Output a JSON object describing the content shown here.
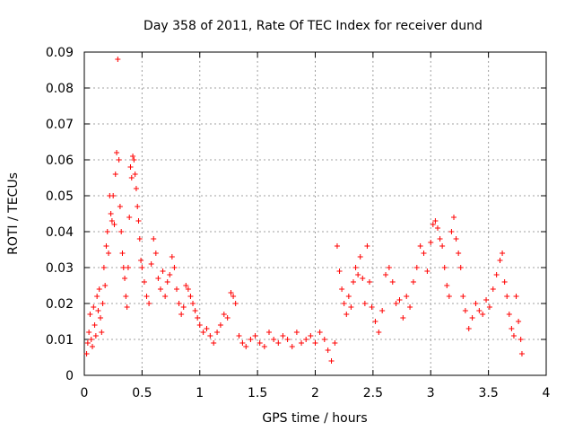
{
  "chart_data": {
    "type": "scatter",
    "title": "Day 358 of 2011, Rate Of TEC Index for receiver dund",
    "xlabel": "GPS time / hours",
    "ylabel": "ROTI / TECUs",
    "xlim": [
      0,
      4
    ],
    "ylim": [
      0,
      0.09
    ],
    "xticks": [
      0,
      0.5,
      1,
      1.5,
      2,
      2.5,
      3,
      3.5,
      4
    ],
    "xtick_labels": [
      "0",
      "0.5",
      "1",
      "1.5",
      "2",
      "2.5",
      "3",
      "3.5",
      "4"
    ],
    "yticks": [
      0,
      0.01,
      0.02,
      0.03,
      0.04,
      0.05,
      0.06,
      0.07,
      0.08,
      0.09
    ],
    "ytick_labels": [
      "0",
      "0.01",
      "0.02",
      "0.03",
      "0.04",
      "0.05",
      "0.06",
      "0.07",
      "0.08",
      "0.09"
    ],
    "grid": true,
    "marker": "plus",
    "color": "#ff0000",
    "series": [
      {
        "points": [
          [
            0.02,
            0.006
          ],
          [
            0.03,
            0.009
          ],
          [
            0.04,
            0.012
          ],
          [
            0.05,
            0.017
          ],
          [
            0.06,
            0.01
          ],
          [
            0.07,
            0.008
          ],
          [
            0.08,
            0.019
          ],
          [
            0.09,
            0.014
          ],
          [
            0.1,
            0.011
          ],
          [
            0.11,
            0.022
          ],
          [
            0.12,
            0.018
          ],
          [
            0.13,
            0.024
          ],
          [
            0.14,
            0.016
          ],
          [
            0.15,
            0.012
          ],
          [
            0.16,
            0.02
          ],
          [
            0.17,
            0.03
          ],
          [
            0.18,
            0.025
          ],
          [
            0.19,
            0.036
          ],
          [
            0.2,
            0.04
          ],
          [
            0.21,
            0.034
          ],
          [
            0.22,
            0.05
          ],
          [
            0.23,
            0.045
          ],
          [
            0.24,
            0.043
          ],
          [
            0.25,
            0.05
          ],
          [
            0.26,
            0.042
          ],
          [
            0.27,
            0.056
          ],
          [
            0.28,
            0.062
          ],
          [
            0.29,
            0.088
          ],
          [
            0.3,
            0.06
          ],
          [
            0.31,
            0.047
          ],
          [
            0.32,
            0.04
          ],
          [
            0.33,
            0.034
          ],
          [
            0.34,
            0.03
          ],
          [
            0.35,
            0.027
          ],
          [
            0.36,
            0.022
          ],
          [
            0.37,
            0.019
          ],
          [
            0.38,
            0.03
          ],
          [
            0.39,
            0.044
          ],
          [
            0.4,
            0.058
          ],
          [
            0.41,
            0.055
          ],
          [
            0.42,
            0.061
          ],
          [
            0.43,
            0.06
          ],
          [
            0.44,
            0.056
          ],
          [
            0.45,
            0.052
          ],
          [
            0.46,
            0.047
          ],
          [
            0.47,
            0.043
          ],
          [
            0.48,
            0.038
          ],
          [
            0.49,
            0.032
          ],
          [
            0.5,
            0.03
          ],
          [
            0.52,
            0.026
          ],
          [
            0.54,
            0.022
          ],
          [
            0.56,
            0.02
          ],
          [
            0.58,
            0.031
          ],
          [
            0.6,
            0.038
          ],
          [
            0.62,
            0.034
          ],
          [
            0.64,
            0.027
          ],
          [
            0.66,
            0.024
          ],
          [
            0.68,
            0.029
          ],
          [
            0.7,
            0.022
          ],
          [
            0.72,
            0.026
          ],
          [
            0.74,
            0.028
          ],
          [
            0.76,
            0.033
          ],
          [
            0.78,
            0.03
          ],
          [
            0.8,
            0.024
          ],
          [
            0.82,
            0.02
          ],
          [
            0.84,
            0.017
          ],
          [
            0.86,
            0.019
          ],
          [
            0.88,
            0.025
          ],
          [
            0.9,
            0.024
          ],
          [
            0.92,
            0.022
          ],
          [
            0.94,
            0.02
          ],
          [
            0.96,
            0.018
          ],
          [
            0.98,
            0.016
          ],
          [
            1.0,
            0.014
          ],
          [
            1.03,
            0.012
          ],
          [
            1.06,
            0.013
          ],
          [
            1.09,
            0.011
          ],
          [
            1.12,
            0.009
          ],
          [
            1.15,
            0.012
          ],
          [
            1.18,
            0.014
          ],
          [
            1.21,
            0.017
          ],
          [
            1.24,
            0.016
          ],
          [
            1.27,
            0.023
          ],
          [
            1.29,
            0.022
          ],
          [
            1.31,
            0.02
          ],
          [
            1.34,
            0.011
          ],
          [
            1.37,
            0.009
          ],
          [
            1.4,
            0.008
          ],
          [
            1.44,
            0.01
          ],
          [
            1.48,
            0.011
          ],
          [
            1.52,
            0.009
          ],
          [
            1.56,
            0.008
          ],
          [
            1.6,
            0.012
          ],
          [
            1.64,
            0.01
          ],
          [
            1.68,
            0.009
          ],
          [
            1.72,
            0.011
          ],
          [
            1.76,
            0.01
          ],
          [
            1.8,
            0.008
          ],
          [
            1.84,
            0.012
          ],
          [
            1.88,
            0.009
          ],
          [
            1.92,
            0.01
          ],
          [
            1.96,
            0.011
          ],
          [
            2.0,
            0.009
          ],
          [
            2.04,
            0.012
          ],
          [
            2.08,
            0.01
          ],
          [
            2.11,
            0.007
          ],
          [
            2.14,
            0.004
          ],
          [
            2.17,
            0.009
          ],
          [
            2.19,
            0.036
          ],
          [
            2.21,
            0.029
          ],
          [
            2.23,
            0.024
          ],
          [
            2.25,
            0.02
          ],
          [
            2.27,
            0.017
          ],
          [
            2.29,
            0.022
          ],
          [
            2.31,
            0.019
          ],
          [
            2.33,
            0.026
          ],
          [
            2.35,
            0.03
          ],
          [
            2.37,
            0.028
          ],
          [
            2.39,
            0.033
          ],
          [
            2.41,
            0.027
          ],
          [
            2.43,
            0.02
          ],
          [
            2.45,
            0.036
          ],
          [
            2.47,
            0.026
          ],
          [
            2.49,
            0.019
          ],
          [
            2.52,
            0.015
          ],
          [
            2.55,
            0.012
          ],
          [
            2.58,
            0.018
          ],
          [
            2.61,
            0.028
          ],
          [
            2.64,
            0.03
          ],
          [
            2.67,
            0.026
          ],
          [
            2.7,
            0.02
          ],
          [
            2.73,
            0.021
          ],
          [
            2.76,
            0.016
          ],
          [
            2.79,
            0.022
          ],
          [
            2.82,
            0.019
          ],
          [
            2.85,
            0.026
          ],
          [
            2.88,
            0.03
          ],
          [
            2.91,
            0.036
          ],
          [
            2.94,
            0.034
          ],
          [
            2.97,
            0.029
          ],
          [
            3.0,
            0.037
          ],
          [
            3.02,
            0.042
          ],
          [
            3.04,
            0.043
          ],
          [
            3.06,
            0.041
          ],
          [
            3.08,
            0.038
          ],
          [
            3.1,
            0.036
          ],
          [
            3.12,
            0.03
          ],
          [
            3.14,
            0.025
          ],
          [
            3.16,
            0.022
          ],
          [
            3.18,
            0.04
          ],
          [
            3.2,
            0.044
          ],
          [
            3.22,
            0.038
          ],
          [
            3.24,
            0.034
          ],
          [
            3.26,
            0.03
          ],
          [
            3.28,
            0.022
          ],
          [
            3.3,
            0.018
          ],
          [
            3.33,
            0.013
          ],
          [
            3.36,
            0.016
          ],
          [
            3.39,
            0.02
          ],
          [
            3.42,
            0.018
          ],
          [
            3.45,
            0.017
          ],
          [
            3.48,
            0.021
          ],
          [
            3.51,
            0.019
          ],
          [
            3.54,
            0.024
          ],
          [
            3.57,
            0.028
          ],
          [
            3.6,
            0.032
          ],
          [
            3.62,
            0.034
          ],
          [
            3.64,
            0.026
          ],
          [
            3.66,
            0.022
          ],
          [
            3.68,
            0.017
          ],
          [
            3.7,
            0.013
          ],
          [
            3.72,
            0.011
          ],
          [
            3.74,
            0.022
          ],
          [
            3.76,
            0.015
          ],
          [
            3.78,
            0.01
          ],
          [
            3.79,
            0.006
          ]
        ]
      }
    ]
  }
}
